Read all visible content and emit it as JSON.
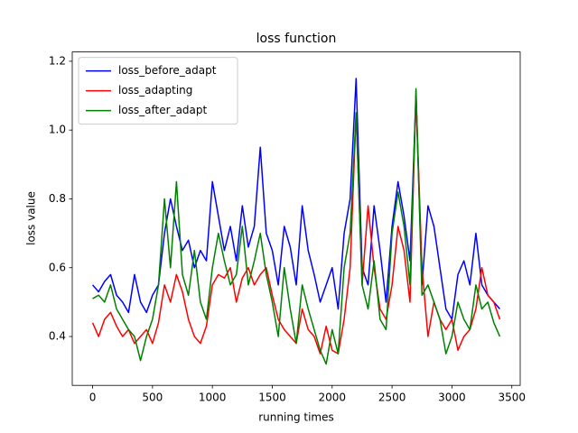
{
  "chart_data": {
    "type": "line",
    "title": "loss function",
    "x_label": "running times",
    "y_label": "loss value",
    "x": [
      0,
      50,
      100,
      150,
      200,
      250,
      300,
      350,
      400,
      450,
      500,
      550,
      600,
      650,
      700,
      750,
      800,
      850,
      900,
      950,
      1000,
      1050,
      1100,
      1150,
      1200,
      1250,
      1300,
      1350,
      1400,
      1450,
      1500,
      1550,
      1600,
      1650,
      1700,
      1750,
      1800,
      1850,
      1900,
      1950,
      2000,
      2050,
      2100,
      2150,
      2200,
      2250,
      2300,
      2350,
      2400,
      2450,
      2500,
      2550,
      2600,
      2650,
      2700,
      2750,
      2800,
      2850,
      2900,
      2950,
      3000,
      3050,
      3100,
      3150,
      3200,
      3250,
      3300,
      3350,
      3400
    ],
    "series": [
      {
        "name": "loss_before_adapt",
        "color": "#0000ff",
        "values": [
          0.55,
          0.53,
          0.56,
          0.58,
          0.52,
          0.5,
          0.47,
          0.58,
          0.5,
          0.47,
          0.52,
          0.55,
          0.7,
          0.8,
          0.72,
          0.65,
          0.68,
          0.6,
          0.65,
          0.62,
          0.85,
          0.75,
          0.65,
          0.72,
          0.62,
          0.78,
          0.66,
          0.72,
          0.95,
          0.7,
          0.65,
          0.55,
          0.72,
          0.66,
          0.55,
          0.78,
          0.65,
          0.58,
          0.5,
          0.55,
          0.6,
          0.48,
          0.7,
          0.8,
          1.15,
          0.6,
          0.55,
          0.78,
          0.65,
          0.5,
          0.72,
          0.85,
          0.75,
          0.62,
          1.1,
          0.55,
          0.78,
          0.72,
          0.6,
          0.48,
          0.45,
          0.58,
          0.62,
          0.55,
          0.7,
          0.55,
          0.52,
          0.5,
          0.48
        ]
      },
      {
        "name": "loss_adapting",
        "color": "#ff0000",
        "values": [
          0.44,
          0.4,
          0.45,
          0.47,
          0.43,
          0.4,
          0.42,
          0.38,
          0.4,
          0.42,
          0.38,
          0.44,
          0.55,
          0.5,
          0.58,
          0.53,
          0.45,
          0.4,
          0.38,
          0.43,
          0.55,
          0.58,
          0.57,
          0.6,
          0.5,
          0.57,
          0.6,
          0.55,
          0.58,
          0.6,
          0.52,
          0.45,
          0.42,
          0.4,
          0.38,
          0.48,
          0.42,
          0.4,
          0.35,
          0.43,
          0.36,
          0.35,
          0.45,
          0.6,
          1.05,
          0.55,
          0.78,
          0.6,
          0.48,
          0.45,
          0.55,
          0.72,
          0.65,
          0.5,
          1.1,
          0.6,
          0.4,
          0.5,
          0.45,
          0.42,
          0.45,
          0.36,
          0.4,
          0.42,
          0.48,
          0.6,
          0.52,
          0.5,
          0.45
        ]
      },
      {
        "name": "loss_after_adapt",
        "color": "#008000",
        "values": [
          0.51,
          0.52,
          0.5,
          0.55,
          0.48,
          0.45,
          0.42,
          0.4,
          0.33,
          0.4,
          0.45,
          0.55,
          0.8,
          0.6,
          0.85,
          0.58,
          0.52,
          0.65,
          0.5,
          0.45,
          0.6,
          0.7,
          0.62,
          0.55,
          0.58,
          0.72,
          0.55,
          0.62,
          0.7,
          0.58,
          0.5,
          0.4,
          0.6,
          0.48,
          0.38,
          0.55,
          0.48,
          0.42,
          0.36,
          0.32,
          0.42,
          0.35,
          0.6,
          0.7,
          1.05,
          0.55,
          0.48,
          0.62,
          0.45,
          0.42,
          0.7,
          0.82,
          0.72,
          0.55,
          1.12,
          0.52,
          0.55,
          0.5,
          0.45,
          0.35,
          0.4,
          0.5,
          0.45,
          0.42,
          0.55,
          0.48,
          0.5,
          0.44,
          0.4
        ]
      }
    ],
    "xlim": [
      -170,
      3570
    ],
    "ylim": [
      0.258,
      1.227
    ],
    "xticks": [
      0,
      500,
      1000,
      1500,
      2000,
      2500,
      3000,
      3500
    ],
    "yticks": [
      0.4,
      0.6,
      0.8,
      {
        "value": 1,
        "label": "1.0"
      },
      1.2
    ],
    "legend": "upper left"
  }
}
